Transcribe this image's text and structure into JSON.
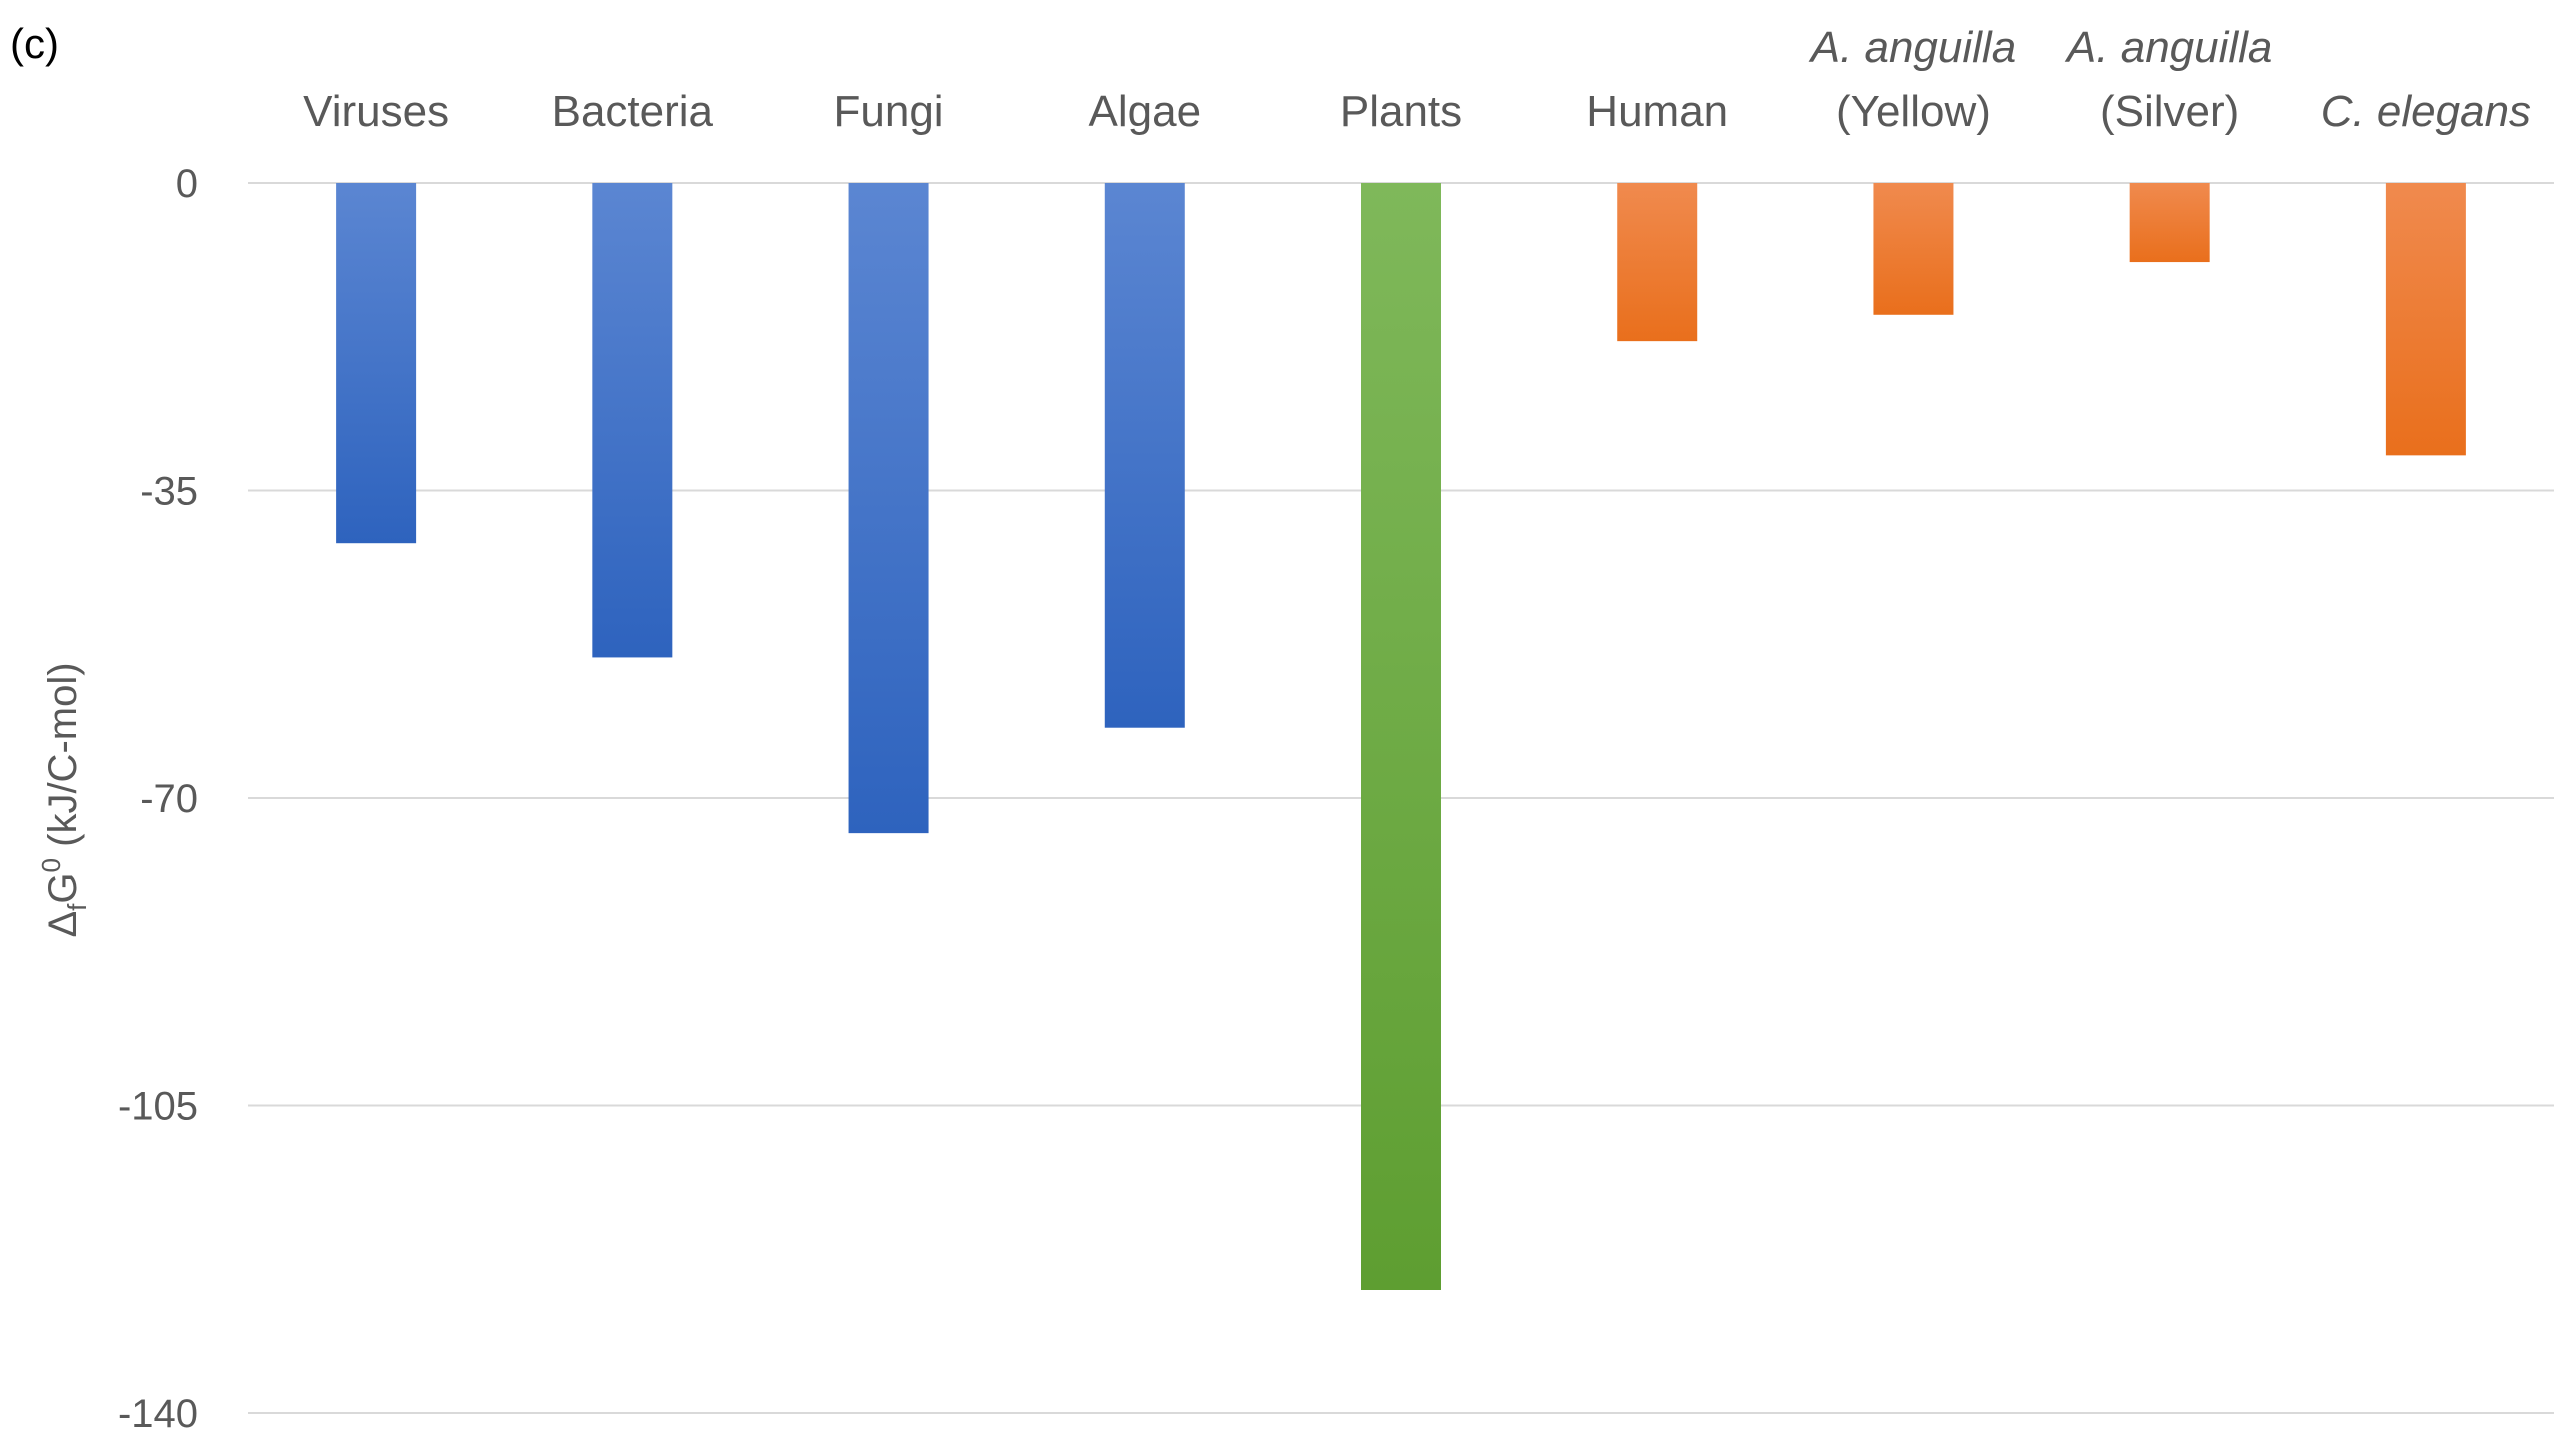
{
  "panel_label": "(c)",
  "chart_data": {
    "type": "bar",
    "categories": [
      {
        "lines": [
          "Viruses"
        ],
        "italic": false
      },
      {
        "lines": [
          "Bacteria"
        ],
        "italic": false
      },
      {
        "lines": [
          "Fungi"
        ],
        "italic": false
      },
      {
        "lines": [
          "Algae"
        ],
        "italic": false
      },
      {
        "lines": [
          "Plants"
        ],
        "italic": false
      },
      {
        "lines": [
          "Human"
        ],
        "italic": false
      },
      {
        "lines": [
          "A. anguilla",
          "(Yellow)"
        ],
        "italic_lines": [
          true,
          false
        ]
      },
      {
        "lines": [
          "A. anguilla",
          "(Silver)"
        ],
        "italic_lines": [
          true,
          false
        ]
      },
      {
        "lines": [
          "C. elegans"
        ],
        "italic": true
      }
    ],
    "values": [
      -41,
      -54,
      -74,
      -62,
      -126,
      -18,
      -15,
      -9,
      -31
    ],
    "bar_colors": [
      "#4472c4",
      "#4472c4",
      "#4472c4",
      "#4472c4",
      "#70ad47",
      "#ed7d31",
      "#ed7d31",
      "#ed7d31",
      "#ed7d31"
    ],
    "ylabel_parts": {
      "main": "Δ",
      "sub": "f",
      "g": "G",
      "sup": "0",
      "rest": " (kJ/C-mol)"
    },
    "ylim": [
      -140,
      0
    ],
    "yticks": [
      0,
      -35,
      -70,
      -105,
      -140
    ],
    "ytick_labels": [
      "0",
      "-35",
      "-70",
      "-105",
      "-140"
    ],
    "gridlines": true,
    "category_axis_position": "top"
  }
}
